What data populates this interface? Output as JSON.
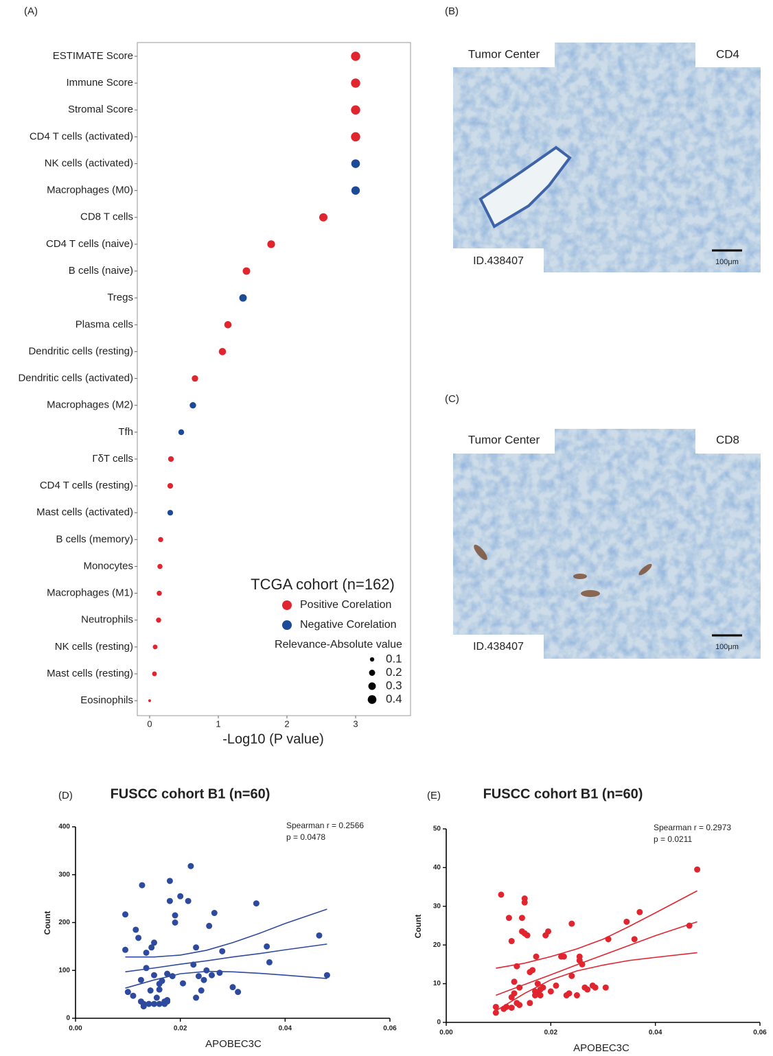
{
  "chart_data": [
    {
      "type": "dot",
      "panel_label": "(A)",
      "categories": [
        "ESTIMATE Score",
        "Immune Score",
        "Stromal Score",
        "CD4 T cells (activated)",
        "NK cells (activated)",
        "Macrophages (M0)",
        "CD8 T cells",
        "CD4 T cells (naive)",
        "B cells (naive)",
        "Tregs",
        "Plasma cells",
        "Dendritic cells (resting)",
        "Dendritic cells (activated)",
        "Macrophages (M2)",
        "Tfh",
        "ΓδT cells",
        "CD4 T cells (resting)",
        "Mast cells (activated)",
        "B cells (memory)",
        "Monocytes",
        "Macrophages (M1)",
        "Neutrophils",
        "NK cells (resting)",
        "Mast cells (resting)",
        "Eosinophils"
      ],
      "xlabel": "-Log10 (P value)",
      "xlim": [
        -0.18,
        3.8
      ],
      "xticks": [
        0,
        1,
        2,
        3
      ],
      "legend_title": "TCGA cohort (n=162)",
      "series": [
        {
          "name": "Positive Corelation",
          "color": "#e0252f",
          "values": [
            3,
            3,
            3,
            3,
            null,
            null,
            2.53,
            1.77,
            1.41,
            null,
            1.14,
            1.06,
            0.66,
            null,
            null,
            0.31,
            0.3,
            null,
            0.16,
            0.15,
            0.14,
            0.13,
            0.08,
            0.07,
            0
          ],
          "sizes": [
            0.45,
            0.45,
            0.45,
            0.45,
            null,
            null,
            0.36,
            0.32,
            0.3,
            null,
            0.28,
            0.28,
            0.22,
            null,
            null,
            0.17,
            0.17,
            null,
            0.14,
            0.14,
            0.14,
            0.14,
            0.12,
            0.12,
            0.04
          ]
        },
        {
          "name": "Negative Corelation",
          "color": "#1d4a97",
          "values": [
            null,
            null,
            null,
            null,
            3,
            3,
            null,
            null,
            null,
            1.36,
            null,
            null,
            null,
            0.63,
            0.46,
            null,
            null,
            0.3,
            null,
            null,
            null,
            null,
            null,
            null,
            null
          ],
          "sizes": [
            null,
            null,
            null,
            null,
            0.4,
            0.38,
            null,
            null,
            null,
            0.3,
            null,
            null,
            null,
            0.22,
            0.18,
            null,
            null,
            0.17,
            null,
            null,
            null,
            null,
            null,
            null,
            null
          ]
        }
      ],
      "size_legend": {
        "title": "Relevance-Absolute value",
        "values": [
          0.1,
          0.2,
          0.3,
          0.4
        ]
      }
    },
    {
      "type": "scatter",
      "panel_label": "(D)",
      "title": "FUSCC cohort B1 (n=60)",
      "annotations": [
        "Spearman r = 0.2566",
        "p = 0.0478"
      ],
      "xlabel": "APOBEC3C",
      "ylabel": "Count",
      "color": "#2e4a9e",
      "x": [
        0.0095,
        0.0095,
        0.01,
        0.011,
        0.0115,
        0.012,
        0.0125,
        0.0127,
        0.013,
        0.013,
        0.0135,
        0.0135,
        0.014,
        0.0143,
        0.0145,
        0.015,
        0.015,
        0.0155,
        0.015,
        0.016,
        0.016,
        0.016,
        0.0165,
        0.017,
        0.0175,
        0.0175,
        0.018,
        0.018,
        0.0185,
        0.019,
        0.019,
        0.02,
        0.0205,
        0.0215,
        0.022,
        0.0225,
        0.023,
        0.023,
        0.0235,
        0.024,
        0.0245,
        0.025,
        0.0255,
        0.026,
        0.0265,
        0.0275,
        0.028,
        0.03,
        0.031,
        0.0345,
        0.0365,
        0.037,
        0.0465,
        0.048,
        0.017,
        0.0175,
        0.0125
      ],
      "values": [
        217,
        143,
        55,
        47,
        185,
        168,
        80,
        278,
        30,
        25,
        137,
        105,
        30,
        58,
        148,
        158,
        90,
        43,
        30,
        72,
        60,
        30,
        78,
        30,
        35,
        93,
        245,
        287,
        88,
        215,
        200,
        255,
        73,
        245,
        318,
        112,
        43,
        148,
        88,
        58,
        80,
        100,
        193,
        90,
        220,
        95,
        140,
        65,
        55,
        240,
        150,
        117,
        173,
        90,
        35,
        38,
        35
      ],
      "fit_x": [
        0.0095,
        0.015,
        0.02,
        0.025,
        0.03,
        0.035,
        0.04,
        0.048
      ],
      "fit": [
        97,
        105,
        113,
        120,
        128,
        135,
        143,
        155
      ],
      "ci_upper": [
        128,
        128,
        132,
        142,
        158,
        177,
        198,
        228
      ],
      "ci_lower": [
        63,
        80,
        93,
        98,
        97,
        94,
        90,
        83
      ],
      "xlim": [
        0,
        0.06
      ],
      "xticks": [
        {
          "value": 0,
          "label": "0.00"
        },
        {
          "value": 0.02,
          "label": "0.02"
        },
        {
          "value": 0.04,
          "label": "0.04"
        },
        {
          "value": 0.06,
          "label": "0.06"
        }
      ],
      "ylim": [
        0,
        400
      ],
      "yticks": [
        0,
        100,
        200,
        300,
        400
      ]
    },
    {
      "type": "scatter",
      "panel_label": "(E)",
      "title": "FUSCC cohort B1 (n=60)",
      "annotations": [
        "Spearman r = 0.2973",
        "p = 0.0211"
      ],
      "xlabel": "APOBEC3C",
      "ylabel": "Count",
      "color": "#e0252f",
      "x": [
        0.0095,
        0.0095,
        0.0105,
        0.0115,
        0.012,
        0.0125,
        0.0125,
        0.013,
        0.013,
        0.0135,
        0.0135,
        0.014,
        0.014,
        0.0145,
        0.0145,
        0.015,
        0.015,
        0.015,
        0.0155,
        0.016,
        0.016,
        0.0165,
        0.017,
        0.0172,
        0.0175,
        0.018,
        0.018,
        0.0185,
        0.019,
        0.0195,
        0.02,
        0.021,
        0.022,
        0.0225,
        0.023,
        0.0235,
        0.024,
        0.024,
        0.025,
        0.0255,
        0.0255,
        0.026,
        0.0265,
        0.027,
        0.028,
        0.0285,
        0.0305,
        0.031,
        0.0345,
        0.036,
        0.037,
        0.0465,
        0.048,
        0.011,
        0.0125,
        0.017,
        0.0175
      ],
      "values": [
        4,
        2.5,
        33,
        4,
        27,
        3.8,
        21,
        10.5,
        7.5,
        14.5,
        5,
        9,
        4.5,
        23.5,
        27,
        32,
        31,
        23,
        22.5,
        13,
        5,
        13.5,
        8,
        17,
        7.5,
        8.5,
        7,
        9,
        22.5,
        23.5,
        8,
        9.5,
        17,
        17,
        7,
        7.5,
        12,
        25.5,
        7,
        17,
        16,
        15,
        9,
        8.5,
        9.5,
        9,
        9,
        21.5,
        26,
        21.5,
        28.5,
        25,
        39.5,
        3.5,
        6.5,
        7,
        10
      ],
      "fit_x": [
        0.0095,
        0.015,
        0.02,
        0.025,
        0.03,
        0.035,
        0.04,
        0.048
      ],
      "fit": [
        7,
        9.8,
        12.3,
        14.9,
        17.4,
        19.9,
        22.4,
        26
      ],
      "ci_upper": [
        14,
        15.3,
        17,
        19,
        21.5,
        24.8,
        28.3,
        34
      ],
      "ci_lower": [
        3,
        7.5,
        11,
        13.3,
        14.8,
        16,
        16.8,
        18
      ],
      "xlim": [
        0,
        0.06
      ],
      "xticks": [
        {
          "value": 0,
          "label": "0.00"
        },
        {
          "value": 0.02,
          "label": "0.02"
        },
        {
          "value": 0.04,
          "label": "0.04"
        },
        {
          "value": 0.06,
          "label": "0.06"
        }
      ],
      "ylim": [
        0,
        50
      ],
      "yticks": [
        0,
        10,
        20,
        30,
        40,
        50
      ]
    }
  ],
  "images": [
    {
      "panel_label": "(B)",
      "top_left": "Tumor Center",
      "top_right": "CD4",
      "bottom_left": "ID.438407",
      "scale_bar": "100μm"
    },
    {
      "panel_label": "(C)",
      "top_left": "Tumor Center",
      "top_right": "CD8",
      "bottom_left": "ID.438407",
      "scale_bar": "100μm"
    }
  ]
}
